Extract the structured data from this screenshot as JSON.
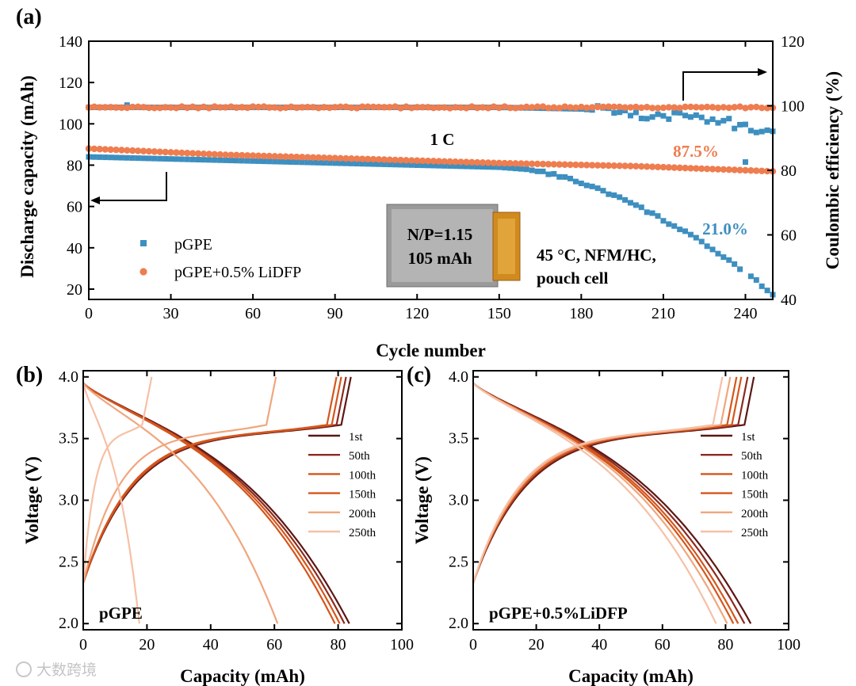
{
  "panel_tags": {
    "a": "(a)",
    "b": "(b)",
    "c": "(c)"
  },
  "watermark": "大数跨境",
  "colors": {
    "pgpe": "#3d8fc0",
    "lidfp": "#ee7d4f",
    "black": "#000000",
    "gray_box": "#9a9a9a",
    "tape": "#d08a1e",
    "curves": [
      "#5b1714",
      "#8c2a1f",
      "#d4561c",
      "#d4561c",
      "#f0a67d",
      "#f6c0a6"
    ]
  },
  "chart_data": [
    {
      "id": "a",
      "type": "scatter",
      "title": "",
      "xlabel": "Cycle number",
      "ylabel": "Discharge capacity (mAh)",
      "y2label": "Coulombic efficiency (%)",
      "xlim": [
        0,
        250
      ],
      "ylim": [
        15,
        140
      ],
      "y2lim": [
        40,
        120
      ],
      "xticks": [
        "0",
        "30",
        "60",
        "90",
        "120",
        "150",
        "180",
        "210",
        "240"
      ],
      "yticks": [
        "20",
        "40",
        "60",
        "80",
        "100",
        "120",
        "140"
      ],
      "y2ticks": [
        "40",
        "60",
        "80",
        "100",
        "120"
      ],
      "annotations": {
        "rate": "1 C",
        "retention_lidfp": "87.5%",
        "retention_pgpe": "21.0%",
        "condition_line1": "45 °C, NFM/HC,",
        "condition_line2": "pouch cell",
        "cell_line1": "N/P=1.15",
        "cell_line2": "105 mAh"
      },
      "legend": {
        "location": "lower-left",
        "entries": [
          "pGPE",
          "pGPE+0.5% LiDFP"
        ]
      },
      "capacity_series": [
        {
          "name": "pGPE",
          "marker": "square",
          "cycles": [
            0,
            30,
            60,
            90,
            120,
            150,
            160,
            170,
            180,
            190,
            200,
            210,
            220,
            230,
            240,
            250
          ],
          "values": [
            84.0,
            83.0,
            82.0,
            81.0,
            80.0,
            79.0,
            78.0,
            75.5,
            71.5,
            66.5,
            60.5,
            53.5,
            46.0,
            37.5,
            28.0,
            17.6
          ]
        },
        {
          "name": "pGPE+0.5% LiDFP",
          "marker": "circle",
          "cycles": [
            0,
            50,
            100,
            150,
            200,
            250
          ],
          "values": [
            88.0,
            85.0,
            83.0,
            81.0,
            79.5,
            77.0
          ]
        }
      ],
      "ce_series": [
        {
          "name": "pGPE",
          "marker": "square",
          "cycles": [
            0,
            150,
            180,
            200,
            215,
            230,
            240,
            250
          ],
          "values": [
            99.5,
            99.5,
            99.0,
            97.5,
            97.0,
            95.5,
            93.5,
            92.5
          ]
        },
        {
          "name": "pGPE+0.5% LiDFP",
          "marker": "circle",
          "cycles": [
            0,
            250
          ],
          "values": [
            99.5,
            99.5
          ]
        }
      ]
    },
    {
      "id": "b",
      "type": "line",
      "title": "pGPE",
      "xlabel": "Capacity (mAh)",
      "ylabel": "Voltage (V)",
      "xlim": [
        0,
        100
      ],
      "ylim": [
        1.95,
        4.05
      ],
      "xticks": [
        "0",
        "20",
        "40",
        "60",
        "80",
        "100"
      ],
      "yticks": [
        "2.0",
        "2.5",
        "3.0",
        "3.5",
        "4.0"
      ],
      "legend": {
        "location": "right",
        "entries": [
          "1st",
          "50th",
          "100th",
          "150th",
          "200th",
          "250th"
        ]
      },
      "series": [
        {
          "name": "1st",
          "charge_cap": 81.0,
          "discharge_cap": 83.5
        },
        {
          "name": "50th",
          "charge_cap": 79.5,
          "discharge_cap": 82.0
        },
        {
          "name": "100th",
          "charge_cap": 78.0,
          "discharge_cap": 80.5
        },
        {
          "name": "150th",
          "charge_cap": 76.5,
          "discharge_cap": 79.0
        },
        {
          "name": "200th",
          "charge_cap": 57.5,
          "discharge_cap": 61.0
        },
        {
          "name": "250th",
          "charge_cap": 18.5,
          "discharge_cap": 17.6
        }
      ]
    },
    {
      "id": "c",
      "type": "line",
      "title": "pGPE+0.5%LiDFP",
      "xlabel": "Capacity (mAh)",
      "ylabel": "Voltage (V)",
      "xlim": [
        0,
        100
      ],
      "ylim": [
        1.95,
        4.05
      ],
      "xticks": [
        "0",
        "20",
        "40",
        "60",
        "80",
        "100"
      ],
      "yticks": [
        "2.0",
        "2.5",
        "3.0",
        "3.5",
        "4.0"
      ],
      "legend": {
        "location": "right",
        "entries": [
          "1st",
          "50th",
          "100th",
          "150th",
          "200th",
          "250th"
        ]
      },
      "series": [
        {
          "name": "1st",
          "charge_cap": 86.0,
          "discharge_cap": 88.0
        },
        {
          "name": "50th",
          "charge_cap": 84.0,
          "discharge_cap": 86.0
        },
        {
          "name": "100th",
          "charge_cap": 82.0,
          "discharge_cap": 84.0
        },
        {
          "name": "150th",
          "charge_cap": 80.5,
          "discharge_cap": 82.5
        },
        {
          "name": "200th",
          "charge_cap": 78.5,
          "discharge_cap": 80.5
        },
        {
          "name": "250th",
          "charge_cap": 76.0,
          "discharge_cap": 77.0
        }
      ]
    }
  ]
}
